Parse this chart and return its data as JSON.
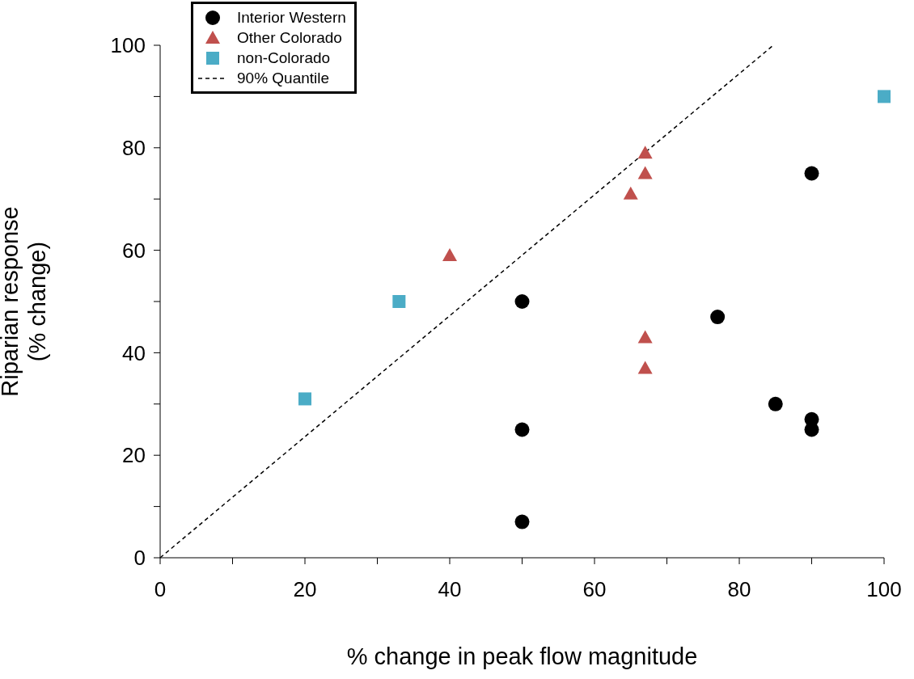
{
  "chart_data": {
    "type": "scatter",
    "xlabel": "% change in peak flow magnitude",
    "ylabel": "Riparian response (% change)",
    "xlim": [
      0,
      100
    ],
    "ylim": [
      0,
      100
    ],
    "xticks": [
      0,
      {
        "value": 10,
        "label": null
      },
      20,
      {
        "value": 30,
        "label": null
      },
      40,
      {
        "value": 50,
        "label": null
      },
      60,
      {
        "value": 70,
        "label": null
      },
      80,
      {
        "value": 90,
        "label": null
      },
      100
    ],
    "yticks": [
      0,
      {
        "value": 10,
        "label": null
      },
      20,
      {
        "value": 30,
        "label": null
      },
      40,
      {
        "value": 50,
        "label": null
      },
      60,
      {
        "value": 70,
        "label": null
      },
      80,
      {
        "value": 90,
        "label": null
      },
      100
    ],
    "legend": "top left",
    "series": [
      {
        "name": "Interior Western",
        "marker": "circle",
        "color": "#000000",
        "x": [
          50,
          50,
          50,
          77,
          85,
          90,
          90,
          90
        ],
        "values": [
          50,
          25,
          7,
          47,
          30,
          75,
          27,
          25
        ]
      },
      {
        "name": "Other Colorado",
        "marker": "triangle",
        "color": "#c0504d",
        "x": [
          40,
          65,
          67,
          67,
          67,
          67
        ],
        "values": [
          59,
          71,
          79,
          75,
          43,
          37
        ]
      },
      {
        "name": "non-Colorado",
        "marker": "square",
        "color": "#4bacc6",
        "x": [
          20,
          33,
          100
        ],
        "values": [
          31,
          50,
          90
        ]
      },
      {
        "name": "90% Quantile",
        "type": "line",
        "line_style": "dashed",
        "color": "#000000",
        "x": [
          0,
          84.7
        ],
        "values": [
          0,
          100
        ]
      }
    ]
  }
}
